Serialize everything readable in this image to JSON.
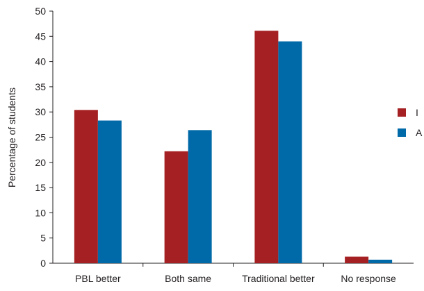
{
  "chart_data": {
    "type": "bar",
    "title": "",
    "xlabel": "",
    "ylabel": "Percentage of students",
    "ylim": [
      0,
      50
    ],
    "yticks": [
      0,
      5,
      10,
      15,
      20,
      25,
      30,
      35,
      40,
      45,
      50
    ],
    "categories": [
      "PBL better",
      "Both same",
      "Traditional better",
      "No response"
    ],
    "series": [
      {
        "name": "I",
        "color": "#a52022",
        "values": [
          30.4,
          22.2,
          46.1,
          1.3
        ]
      },
      {
        "name": "A",
        "color": "#0069a8",
        "values": [
          28.3,
          26.4,
          44.0,
          0.7
        ]
      }
    ],
    "grid": false,
    "legend_position": "right"
  }
}
